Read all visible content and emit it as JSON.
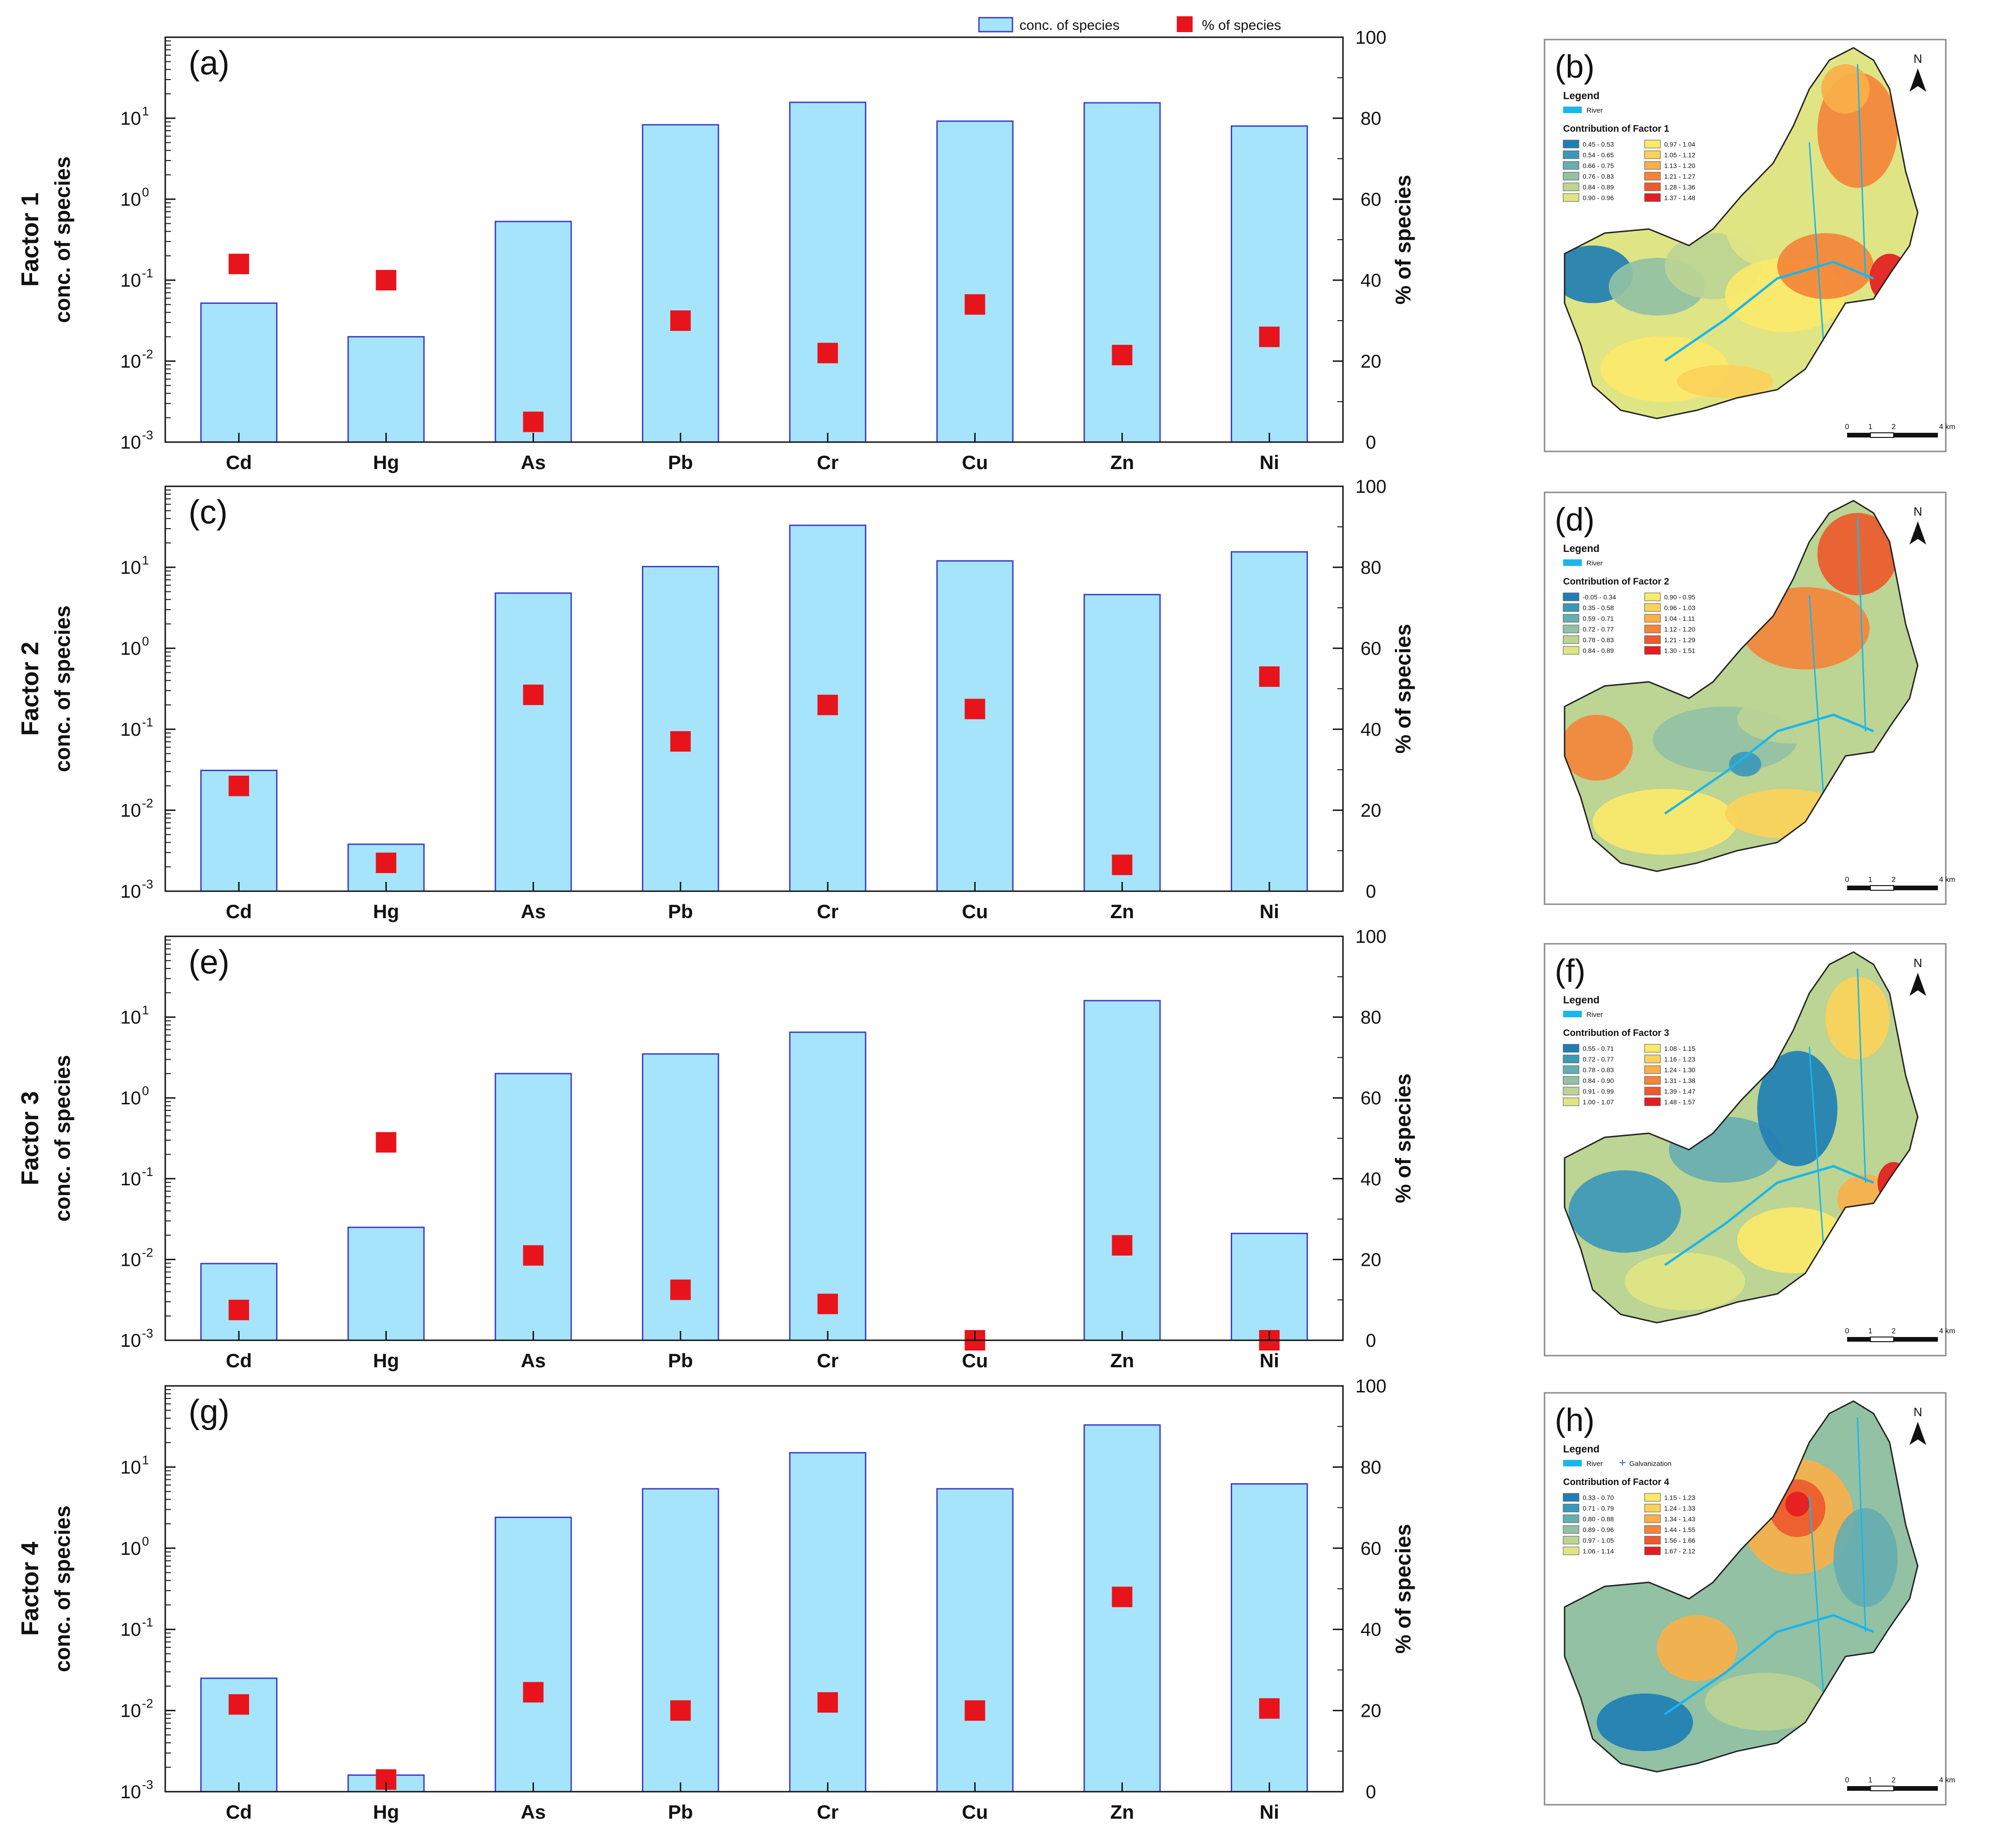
{
  "legend": {
    "bar_label": "conc. of species",
    "marker_label": "% of species"
  },
  "axes": {
    "y_left_label": "conc. of species",
    "y_right_label": "% of species",
    "y_left_ticks": [
      "10",
      "10",
      "10",
      "10",
      "10"
    ],
    "y_left_exponents": [
      "-3",
      "-2",
      "-1",
      "0",
      "1"
    ],
    "y_right_ticks": [
      "0",
      "20",
      "40",
      "60",
      "80",
      "100"
    ]
  },
  "colors": {
    "bar_fill": "#a6e4fb",
    "bar_stroke": "#3f3fcf",
    "marker": "#e8141c",
    "river": "#19b6ec"
  },
  "chart_data": [
    {
      "type": "bar",
      "panel": "(a)",
      "factor_label": "Factor 1",
      "categories": [
        "Cd",
        "Hg",
        "As",
        "Pb",
        "Cr",
        "Cu",
        "Zn",
        "Ni"
      ],
      "series": [
        {
          "name": "conc. of species",
          "type": "bar",
          "axis": "left",
          "scale": "log",
          "values": [
            0.052,
            0.02,
            0.53,
            8.3,
            15.7,
            9.2,
            15.5,
            8.0
          ]
        },
        {
          "name": "% of species",
          "type": "scatter",
          "axis": "right",
          "values": [
            44,
            40,
            5,
            30,
            22,
            34,
            21.5,
            26
          ]
        }
      ],
      "ylim_left": [
        0.001,
        100
      ],
      "ylim_right": [
        0,
        100
      ]
    },
    {
      "type": "bar",
      "panel": "(c)",
      "factor_label": "Factor 2",
      "categories": [
        "Cd",
        "Hg",
        "As",
        "Pb",
        "Cr",
        "Cu",
        "Zn",
        "Ni"
      ],
      "series": [
        {
          "name": "conc. of species",
          "type": "bar",
          "axis": "left",
          "scale": "log",
          "values": [
            0.031,
            0.0038,
            4.8,
            10.2,
            33.0,
            12.0,
            4.6,
            15.5
          ]
        },
        {
          "name": "% of species",
          "type": "scatter",
          "axis": "right",
          "values": [
            26,
            7,
            48.5,
            37,
            46,
            45,
            6.5,
            53
          ]
        }
      ],
      "ylim_left": [
        0.001,
        100
      ],
      "ylim_right": [
        0,
        100
      ]
    },
    {
      "type": "bar",
      "panel": "(e)",
      "factor_label": "Factor 3",
      "categories": [
        "Cd",
        "Hg",
        "As",
        "Pb",
        "Cr",
        "Cu",
        "Zn",
        "Ni"
      ],
      "series": [
        {
          "name": "conc. of species",
          "type": "bar",
          "axis": "left",
          "scale": "log",
          "values": [
            0.0089,
            0.025,
            2.0,
            3.5,
            6.5,
            0.001,
            16.0,
            0.021
          ]
        },
        {
          "name": "% of species",
          "type": "scatter",
          "axis": "right",
          "values": [
            7.5,
            49,
            21,
            12.5,
            9,
            0,
            23.5,
            0
          ]
        }
      ],
      "ylim_left": [
        0.001,
        100
      ],
      "ylim_right": [
        0,
        100
      ]
    },
    {
      "type": "bar",
      "panel": "(g)",
      "factor_label": "Factor 4",
      "categories": [
        "Cd",
        "Hg",
        "As",
        "Pb",
        "Cr",
        "Cu",
        "Zn",
        "Ni"
      ],
      "series": [
        {
          "name": "conc. of species",
          "type": "bar",
          "axis": "left",
          "scale": "log",
          "values": [
            0.025,
            0.0016,
            2.4,
            5.4,
            15.0,
            5.4,
            33.0,
            6.2
          ]
        },
        {
          "name": "% of species",
          "type": "scatter",
          "axis": "right",
          "values": [
            21.5,
            3,
            24.5,
            20,
            22,
            20,
            48,
            20.5
          ]
        }
      ],
      "ylim_left": [
        0.001,
        100
      ],
      "ylim_right": [
        0,
        100
      ]
    }
  ],
  "maps": [
    {
      "panel": "(b)",
      "legend_title": "Legend",
      "river_label": "River",
      "contribution_title": "Contribution of Factor 1",
      "classes": [
        "0.45 - 0.53",
        "0.54 - 0.65",
        "0.66 - 0.75",
        "0.76 - 0.83",
        "0.84 - 0.89",
        "0.90 - 0.96",
        "0.97 - 1.04",
        "1.05 - 1.12",
        "1.13 - 1.20",
        "1.21 - 1.27",
        "1.28 - 1.36",
        "1.37 - 1.48"
      ],
      "scale_labels": [
        "0",
        "1",
        "2",
        "4 km"
      ],
      "north": "N"
    },
    {
      "panel": "(d)",
      "legend_title": "Legend",
      "river_label": "River",
      "contribution_title": "Contribution of Factor 2",
      "classes": [
        "-0.05 - 0.34",
        "0.35 - 0.58",
        "0.59 - 0.71",
        "0.72 - 0.77",
        "0.78 - 0.83",
        "0.84 - 0.89",
        "0.90 - 0.95",
        "0.96 - 1.03",
        "1.04 - 1.11",
        "1.12 - 1.20",
        "1.21 - 1.29",
        "1.30 - 1.51"
      ],
      "scale_labels": [
        "0",
        "1",
        "2",
        "4 km"
      ],
      "north": "N"
    },
    {
      "panel": "(f)",
      "legend_title": "Legend",
      "river_label": "River",
      "contribution_title": "Contribution of Factor 3",
      "classes": [
        "0.55 - 0.71",
        "0.72 - 0.77",
        "0.78 - 0.83",
        "0.84 - 0.90",
        "0.91 - 0.99",
        "1.00 - 1.07",
        "1.08 - 1.15",
        "1.16 - 1.23",
        "1.24 - 1.30",
        "1.31 - 1.38",
        "1.39 - 1.47",
        "1.48 - 1.57"
      ],
      "scale_labels": [
        "0",
        "1",
        "2",
        "4 km"
      ],
      "north": "N"
    },
    {
      "panel": "(h)",
      "legend_title": "Legend",
      "river_label": "River",
      "extra_label": "Galvanization",
      "contribution_title": "Contribution of Factor 4",
      "classes": [
        "0.33 - 0.70",
        "0.71 - 0.79",
        "0.80 - 0.88",
        "0.89 - 0.96",
        "0.97 - 1.05",
        "1.06 - 1.14",
        "1.15 - 1.23",
        "1.24 - 1.33",
        "1.34 - 1.43",
        "1.44 - 1.55",
        "1.56 - 1.66",
        "1.67 - 2.12"
      ],
      "scale_labels": [
        "0",
        "1",
        "2",
        "4 km"
      ],
      "north": "N"
    }
  ],
  "map_palette": [
    "#1f7fb4",
    "#3d98b8",
    "#67aeb0",
    "#92c1a4",
    "#bcd494",
    "#dfe584",
    "#fbe96a",
    "#fbd15a",
    "#f8b04a",
    "#f3853a",
    "#ec5a2d",
    "#e41d21"
  ]
}
